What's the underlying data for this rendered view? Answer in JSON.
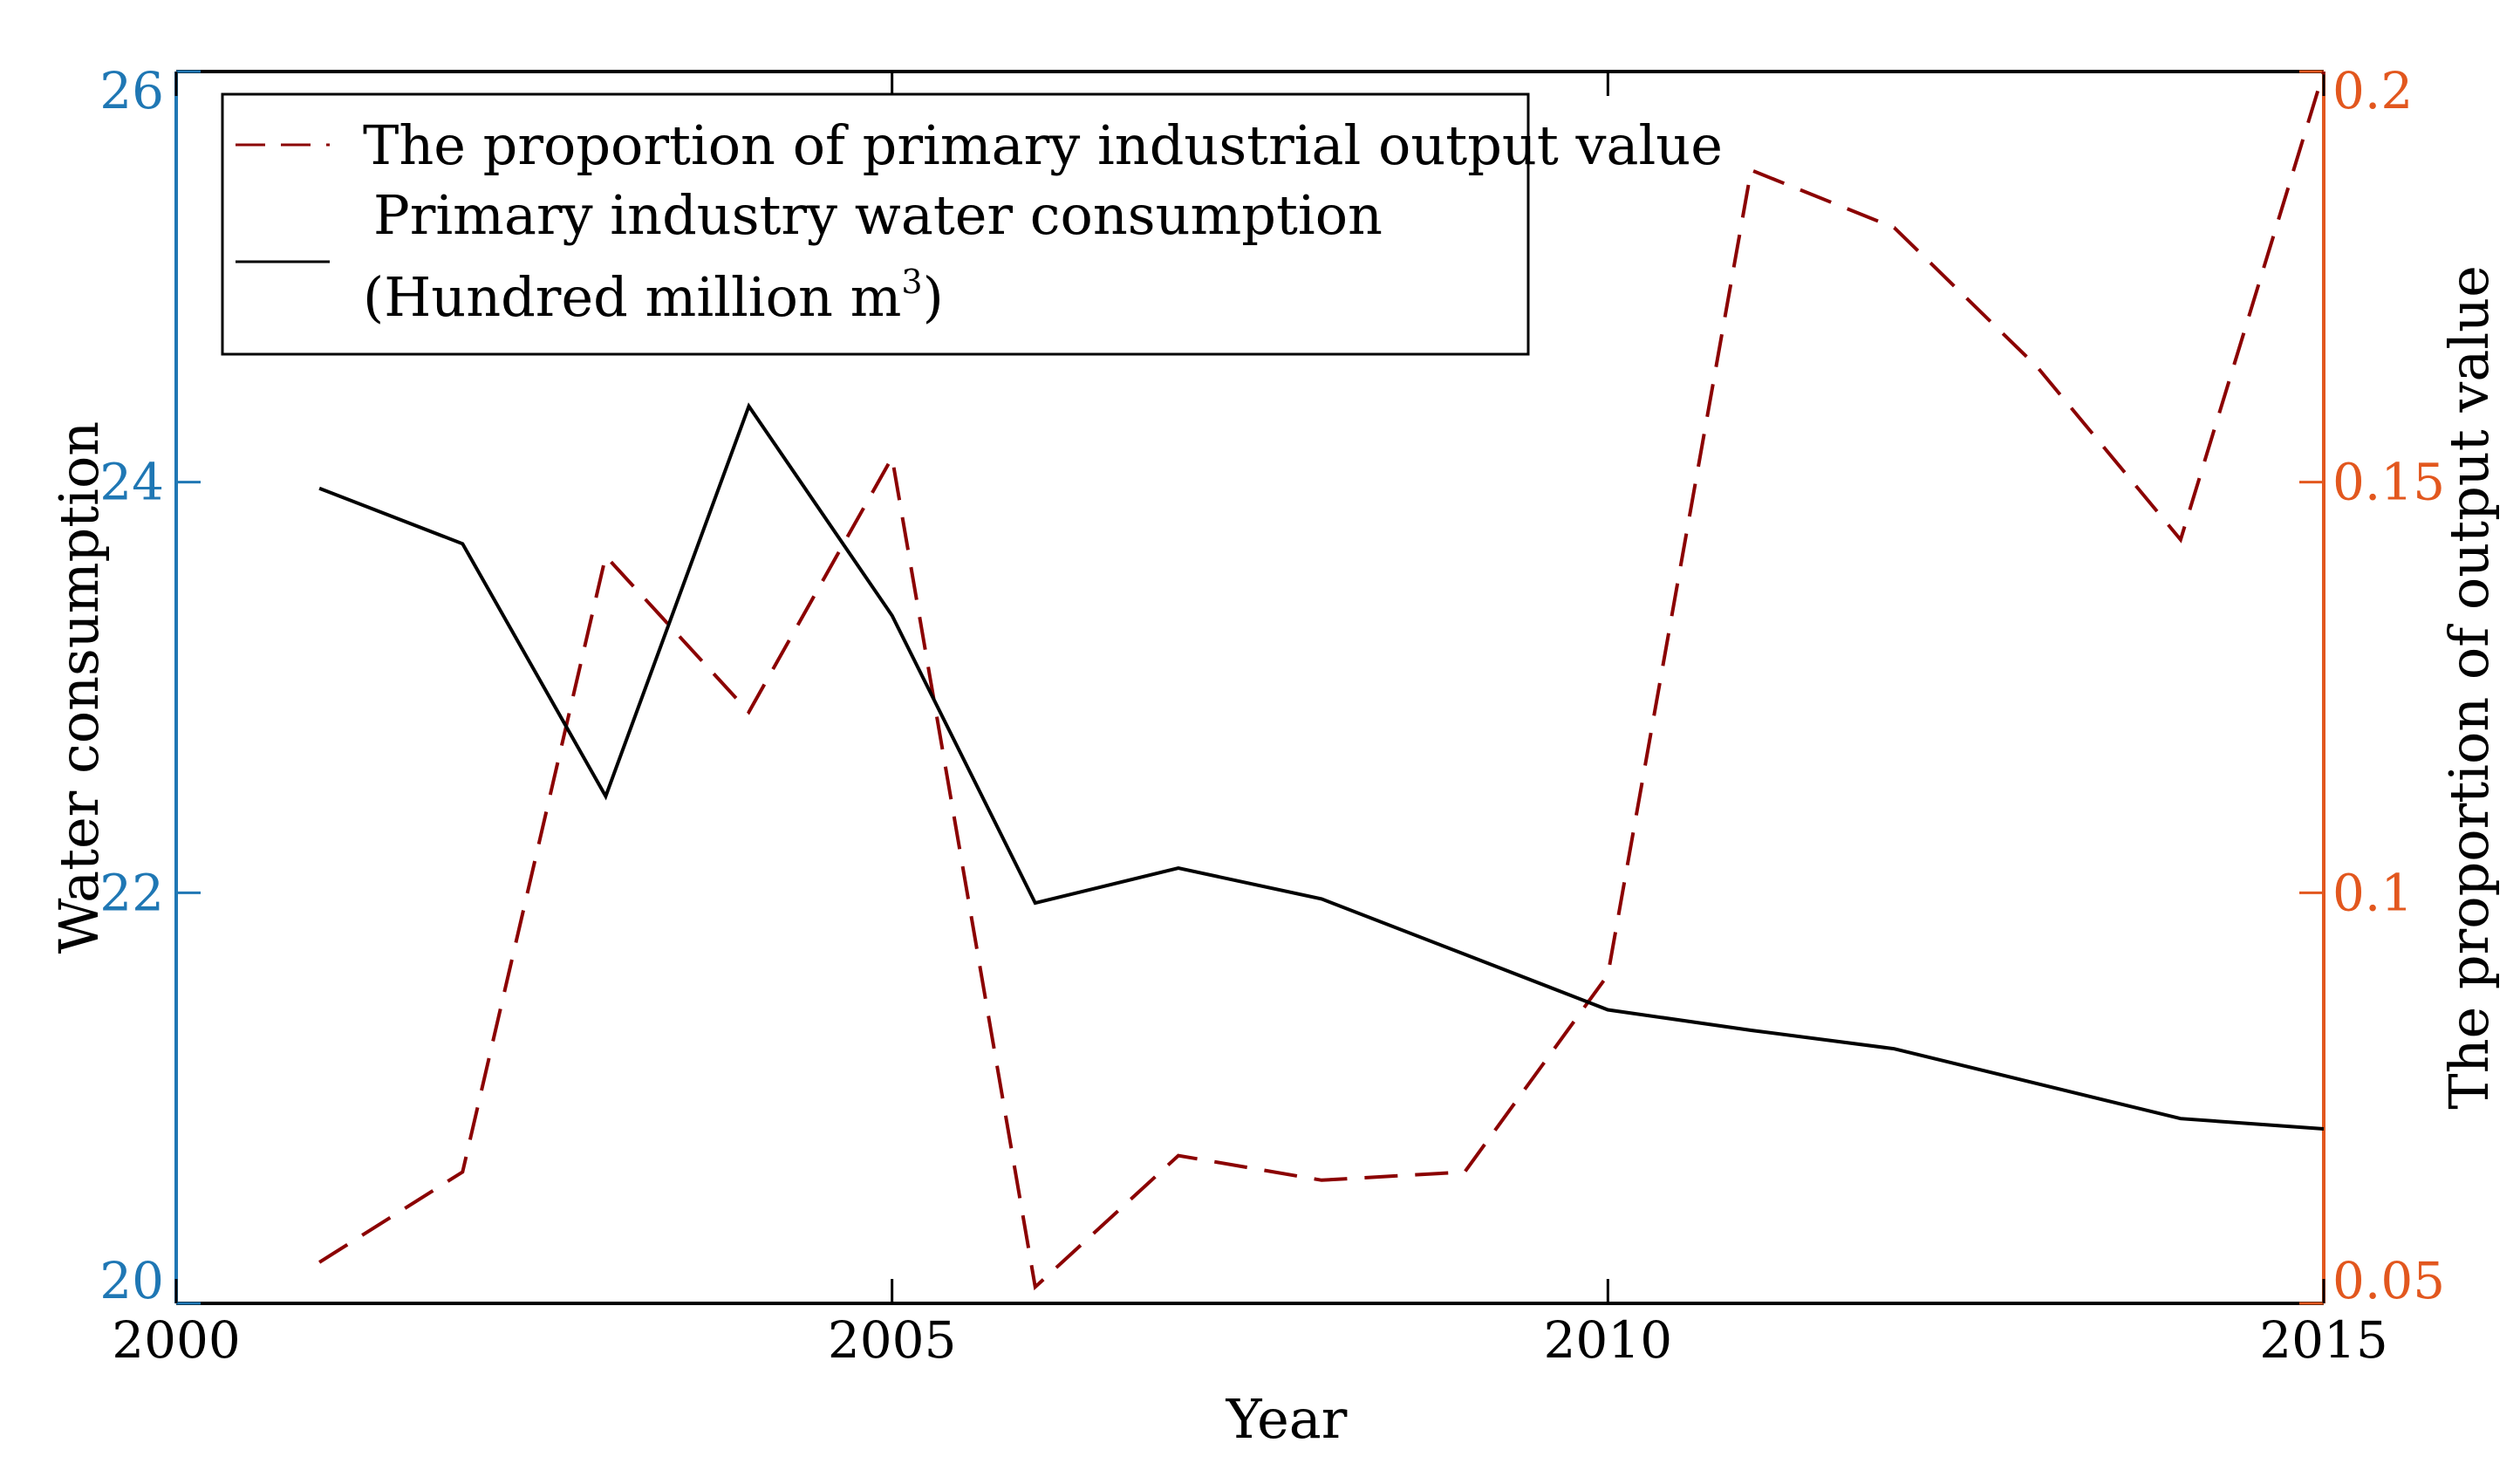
{
  "chart_data": {
    "type": "line",
    "xlabel": "Year",
    "ylabel_left": "Water consumption",
    "ylabel_right": "The proportion of  output value",
    "x_ticks": [
      "2000",
      "2005",
      "2010",
      "2015"
    ],
    "x_tick_values": [
      2000,
      2005,
      2010,
      2015
    ],
    "xlim": [
      2000,
      2015
    ],
    "ylim_left": [
      20,
      26
    ],
    "ylim_right": [
      0.05,
      0.2
    ],
    "left_ticks": [
      "20",
      "22",
      "24",
      "26"
    ],
    "left_tick_values": [
      20,
      22,
      24,
      26
    ],
    "right_ticks": [
      "0.05",
      "0.1",
      "0.15",
      "0.2"
    ],
    "right_tick_values": [
      0.05,
      0.1,
      0.15,
      0.2
    ],
    "legend": {
      "placement": "top-left",
      "entries": [
        {
          "label": "The proportion of primary industrial output value",
          "style": "dashed"
        },
        {
          "label_line1": "Primary industry water consumption",
          "label_line2": "(Hundred million m",
          "superscript": "3",
          "closing": ")",
          "style": "solid"
        }
      ]
    },
    "series": [
      {
        "name": "The proportion of primary industrial output value",
        "axis": "right",
        "color": "#8b0000",
        "style": "dashed",
        "x": [
          2001,
          2002,
          2003,
          2004,
          2005,
          2006,
          2007,
          2008,
          2009,
          2010,
          2011,
          2012,
          2013,
          2014,
          2015
        ],
        "values": [
          0.055,
          0.066,
          0.141,
          0.122,
          0.153,
          0.052,
          0.068,
          0.065,
          0.066,
          0.09,
          0.188,
          0.181,
          0.164,
          0.143,
          0.2
        ]
      },
      {
        "name": "Primary industry water consumption (Hundred million m3)",
        "axis": "left",
        "color": "#000000",
        "style": "solid",
        "x": [
          2001,
          2002,
          2003,
          2004,
          2005,
          2006,
          2007,
          2008,
          2009,
          2010,
          2011,
          2012,
          2013,
          2014,
          2015
        ],
        "values": [
          23.97,
          23.7,
          22.47,
          24.37,
          23.35,
          21.95,
          22.12,
          21.97,
          21.7,
          21.43,
          21.33,
          21.24,
          21.07,
          20.9,
          20.85
        ]
      }
    ],
    "colors": {
      "left_axis": "#1f77b4",
      "right_axis": "#e2571e",
      "dashed_series": "#8b0000",
      "solid_series": "#000000"
    }
  }
}
